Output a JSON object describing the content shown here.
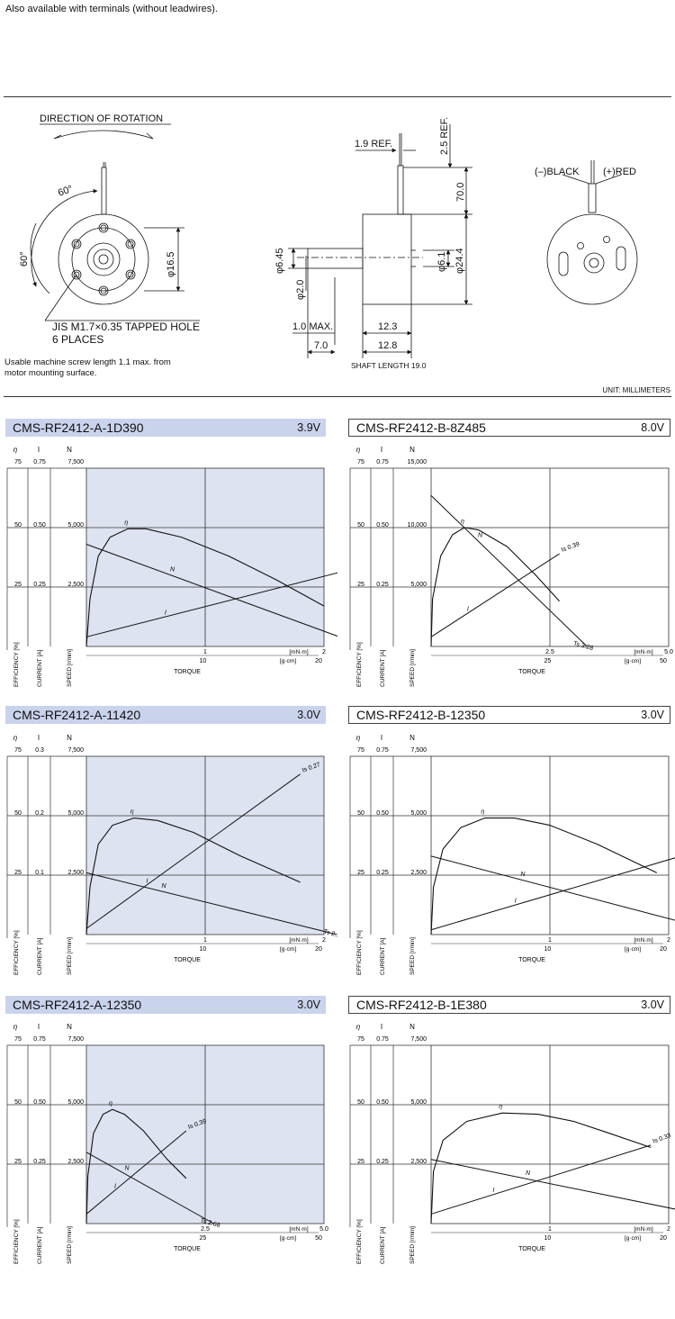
{
  "top_note": "Also available with terminals (without leadwires).",
  "drawing": {
    "direction_label": "DIRECTION OF ROTATION",
    "angle_top": "60°",
    "angle_left": "60°",
    "dia_16_5": "φ16.5",
    "hole_note_line1": "JIS M1.7×0.35 TAPPED HOLE",
    "hole_note_line2": "6 PLACES",
    "screw_note_line1": "Usable machine screw length 1.1 max. from",
    "screw_note_line2": "motor mounting surface.",
    "ref_1_9": "1.9 REF.",
    "ref_2_5": "2.5 REF.",
    "dim_70": "70.0",
    "dim_6_45": "φ6.45",
    "dim_2_0": "φ2.0",
    "dim_6_1": "φ6.1",
    "dim_24_4": "φ24.4",
    "dim_1_0": "1.0 MAX.",
    "dim_12_3": "12.3",
    "dim_7_0": "7.0",
    "dim_12_8": "12.8",
    "shaft_length": "SHAFT LENGTH 19.0",
    "black_label": "(–)BLACK",
    "red_label": "(+)RED",
    "unit": "UNIT: MILLIMETERS"
  },
  "axis_text": {
    "eta": "η",
    "i": "I",
    "n": "N",
    "efficiency": "EFFICIENCY [%]",
    "current": "CURRENT [A]",
    "speed": "SPEED [r/min]",
    "torque": "TORQUE",
    "mnm": "[mN·m]",
    "gcm": "[g·cm]"
  },
  "colors": {
    "blue_header": "#c9d3ec",
    "blue_plot": "#dde3f0"
  },
  "panels": [
    {
      "model": "CMS-RF2412-A-1D390",
      "voltage": "3.9V",
      "style": "blue",
      "eff_ticks": [
        "75",
        "50",
        "25"
      ],
      "cur_ticks": [
        "0.75",
        "0.50",
        "0.25"
      ],
      "spd_ticks": [
        "7,500",
        "5,000",
        "2,500"
      ],
      "mnm_ticks": [
        "1",
        "2"
      ],
      "gcm_ticks": [
        "10",
        "20"
      ],
      "is_label": "Is 0.34",
      "ts_label": "Ts 2.35",
      "chart_data": {
        "type": "line",
        "x_max_mNm": 2,
        "eta_max": 75,
        "i_max": 0.75,
        "n_max": 7500,
        "x": [
          0,
          0.47,
          2.35
        ],
        "series": [
          {
            "name": "η",
            "values": [
              [
                0.03,
                20
              ],
              [
                0.1,
                38
              ],
              [
                0.2,
                46
              ],
              [
                0.35,
                49.5
              ],
              [
                0.5,
                49.5
              ],
              [
                0.8,
                46
              ],
              [
                1.2,
                38
              ],
              [
                1.6,
                28
              ],
              [
                2.0,
                17
              ]
            ]
          },
          {
            "name": "N",
            "values": [
              [
                0,
                4300
              ],
              [
                2.35,
                0
              ]
            ]
          },
          {
            "name": "I",
            "values": [
              [
                0,
                0.04
              ],
              [
                2.35,
                0.34
              ]
            ]
          }
        ]
      }
    },
    {
      "model": "CMS-RF2412-B-8Z485",
      "voltage": "8.0V",
      "style": "white",
      "eff_ticks": [
        "75",
        "50",
        "25"
      ],
      "cur_ticks": [
        "0.75",
        "0.50",
        "0.25"
      ],
      "spd_ticks": [
        "15,000",
        "10,000",
        "5,000"
      ],
      "mnm_ticks": [
        "2.5",
        "5.0"
      ],
      "gcm_ticks": [
        "25",
        "50"
      ],
      "is_label": "Is 0.39",
      "ts_label": "Ts 3.28",
      "chart_data": {
        "type": "line",
        "x_max_mNm": 5,
        "eta_max": 75,
        "i_max": 0.75,
        "n_max": 15000,
        "series": [
          {
            "name": "η",
            "values": [
              [
                0.03,
                20
              ],
              [
                0.2,
                38
              ],
              [
                0.45,
                47
              ],
              [
                0.7,
                50
              ],
              [
                1.0,
                49
              ],
              [
                1.6,
                42
              ],
              [
                2.2,
                30
              ],
              [
                2.7,
                19
              ]
            ]
          },
          {
            "name": "N",
            "values": [
              [
                0,
                12700
              ],
              [
                3.28,
                0
              ]
            ]
          },
          {
            "name": "I",
            "values": [
              [
                0,
                0.04
              ],
              [
                2.7,
                0.39
              ]
            ]
          }
        ]
      }
    },
    {
      "model": "CMS-RF2412-A-11420",
      "voltage": "3.0V",
      "style": "blue",
      "eff_ticks": [
        "75",
        "50",
        "25"
      ],
      "cur_ticks": [
        "0.3",
        "0.2",
        "0.1"
      ],
      "spd_ticks": [
        "7,500",
        "5,000",
        "2,500"
      ],
      "mnm_ticks": [
        "1",
        "2"
      ],
      "gcm_ticks": [
        "10",
        "20"
      ],
      "is_label": "Is 0.27",
      "ts_label": "Ts 2.11",
      "chart_data": {
        "type": "line",
        "x_max_mNm": 2,
        "eta_max": 75,
        "i_max": 0.3,
        "n_max": 7500,
        "series": [
          {
            "name": "η",
            "values": [
              [
                0.03,
                20
              ],
              [
                0.1,
                38
              ],
              [
                0.22,
                46
              ],
              [
                0.4,
                49
              ],
              [
                0.6,
                48
              ],
              [
                0.9,
                43
              ],
              [
                1.3,
                33
              ],
              [
                1.8,
                22
              ]
            ]
          },
          {
            "name": "N",
            "values": [
              [
                0,
                2600
              ],
              [
                2.11,
                0
              ]
            ]
          },
          {
            "name": "I",
            "values": [
              [
                0,
                0.01
              ],
              [
                1.8,
                0.27
              ]
            ]
          }
        ]
      }
    },
    {
      "model": "CMS-RF2412-B-12350",
      "voltage": "3.0V",
      "style": "white",
      "eff_ticks": [
        "75",
        "50",
        "25"
      ],
      "cur_ticks": [
        "0.75",
        "0.50",
        "0.25"
      ],
      "spd_ticks": [
        "7,500",
        "5,000",
        "2,500"
      ],
      "mnm_ticks": [
        "1",
        "2"
      ],
      "gcm_ticks": [
        "10",
        "20"
      ],
      "is_label": "Is 0.39",
      "ts_label": "Ts 2.51",
      "chart_data": {
        "type": "line",
        "x_max_mNm": 2,
        "eta_max": 75,
        "i_max": 0.75,
        "n_max": 7500,
        "series": [
          {
            "name": "η",
            "values": [
              [
                0.02,
                20
              ],
              [
                0.1,
                36
              ],
              [
                0.25,
                45
              ],
              [
                0.45,
                49
              ],
              [
                0.7,
                49
              ],
              [
                1.0,
                46
              ],
              [
                1.4,
                38
              ],
              [
                1.9,
                26
              ]
            ]
          },
          {
            "name": "N",
            "values": [
              [
                0,
                3300
              ],
              [
                2.51,
                0
              ]
            ]
          },
          {
            "name": "I",
            "values": [
              [
                0,
                0.02
              ],
              [
                2.51,
                0.39
              ]
            ]
          }
        ]
      }
    },
    {
      "model": "CMS-RF2412-A-12350",
      "voltage": "3.0V",
      "style": "blue",
      "eff_ticks": [
        "75",
        "50",
        "25"
      ],
      "cur_ticks": [
        "0.75",
        "0.50",
        "0.25"
      ],
      "spd_ticks": [
        "7,500",
        "5,000",
        "2,500"
      ],
      "mnm_ticks": [
        "2.5",
        "5.0"
      ],
      "gcm_ticks": [
        "25",
        "50"
      ],
      "is_label": "Is 0.39",
      "ts_label": "Ts 2.68",
      "chart_data": {
        "type": "line",
        "x_max_mNm": 5,
        "eta_max": 75,
        "i_max": 0.75,
        "n_max": 7500,
        "series": [
          {
            "name": "η",
            "values": [
              [
                0.03,
                20
              ],
              [
                0.15,
                38
              ],
              [
                0.35,
                46
              ],
              [
                0.55,
                48
              ],
              [
                0.8,
                46
              ],
              [
                1.2,
                39
              ],
              [
                1.7,
                27
              ],
              [
                2.1,
                19
              ]
            ]
          },
          {
            "name": "N",
            "values": [
              [
                0,
                3000
              ],
              [
                2.68,
                0
              ]
            ]
          },
          {
            "name": "I",
            "values": [
              [
                0,
                0.04
              ],
              [
                2.1,
                0.39
              ]
            ]
          }
        ]
      }
    },
    {
      "model": "CMS-RF2412-B-1E380",
      "voltage": "3.0V",
      "style": "white",
      "eff_ticks": [
        "75",
        "50",
        "25"
      ],
      "cur_ticks": [
        "0.75",
        "0.50",
        "0.25"
      ],
      "spd_ticks": [
        "7,500",
        "5,000",
        "2,500"
      ],
      "mnm_ticks": [
        "1",
        "2"
      ],
      "gcm_ticks": [
        "10",
        "20"
      ],
      "is_label": "Is 0.33",
      "ts_label": "Ts 2.65",
      "chart_data": {
        "type": "line",
        "x_max_mNm": 2,
        "eta_max": 75,
        "i_max": 0.75,
        "n_max": 7500,
        "series": [
          {
            "name": "η",
            "values": [
              [
                0.02,
                22
              ],
              [
                0.1,
                35
              ],
              [
                0.3,
                43
              ],
              [
                0.6,
                46.5
              ],
              [
                0.9,
                46
              ],
              [
                1.2,
                43
              ],
              [
                1.5,
                38
              ],
              [
                1.85,
                32
              ]
            ]
          },
          {
            "name": "N",
            "values": [
              [
                0,
                2700
              ],
              [
                2.65,
                0
              ]
            ]
          },
          {
            "name": "I",
            "values": [
              [
                0,
                0.04
              ],
              [
                1.85,
                0.33
              ]
            ]
          }
        ]
      }
    }
  ]
}
